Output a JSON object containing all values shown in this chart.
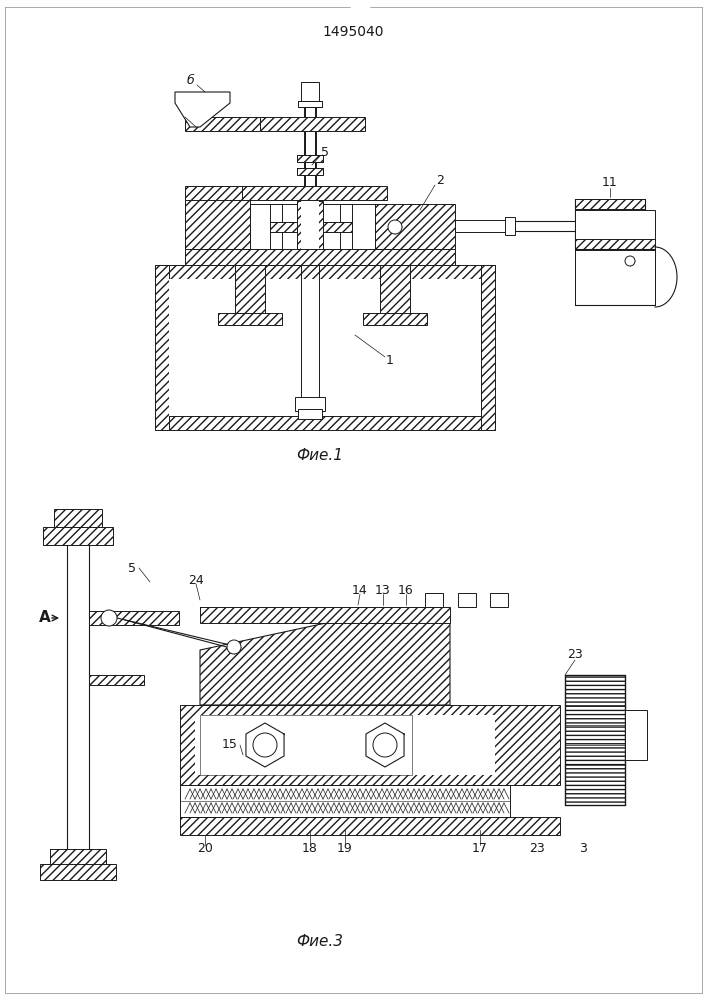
{
  "title": "1495040",
  "fig1_caption": "Фие.1",
  "fig3_caption": "Фие.3",
  "bg_color": "#ffffff",
  "lc": "#1a1a1a",
  "title_fontsize": 10,
  "caption_fontsize": 11,
  "label_fontsize": 9,
  "page_width": 7.07,
  "page_height": 10.0
}
